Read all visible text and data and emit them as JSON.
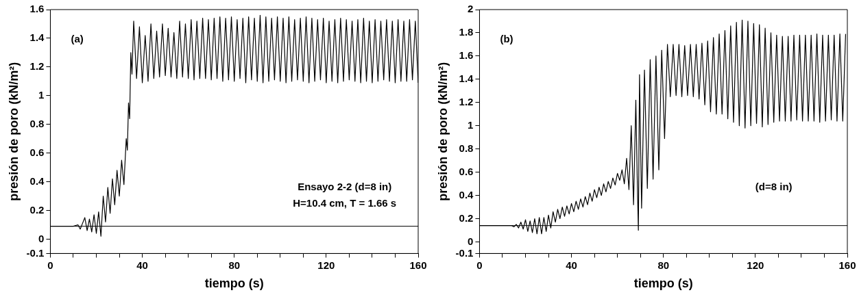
{
  "chart_data": [
    {
      "type": "line",
      "xlabel": "tiempo (s)",
      "ylabel": "presión de poro (kN/m²)",
      "xlim": [
        0,
        160
      ],
      "ylim": [
        -0.1,
        1.6
      ],
      "xticks": [
        0,
        {
          "value": 10,
          "label": null
        },
        {
          "value": 20,
          "label": null
        },
        {
          "value": 30,
          "label": null
        },
        40,
        {
          "value": 50,
          "label": null
        },
        {
          "value": 60,
          "label": null
        },
        {
          "value": 70,
          "label": null
        },
        80,
        {
          "value": 90,
          "label": null
        },
        {
          "value": 100,
          "label": null
        },
        {
          "value": 110,
          "label": null
        },
        120,
        {
          "value": 130,
          "label": null
        },
        {
          "value": 140,
          "label": null
        },
        {
          "value": 150,
          "label": null
        },
        160
      ],
      "yticks": [
        -0.1,
        0,
        0.2,
        0.4,
        0.6,
        0.8,
        1,
        1.2,
        1.4,
        1.6
      ],
      "annotations": [
        "(a)",
        "Ensayo 2-2 (d=8 in)",
        "H=10.4 cm, T = 1.66 s"
      ],
      "ref_lines": [
        {
          "axis": "y",
          "value": 0.09,
          "color": "#000000"
        }
      ],
      "series": [
        {
          "color": "#000000",
          "x": [
            0,
            5,
            10,
            12,
            13,
            14,
            15,
            16,
            17,
            18,
            19,
            20,
            21,
            22,
            23,
            24,
            25,
            26,
            27,
            28,
            29,
            30,
            31,
            32,
            33,
            33.5,
            34,
            34.5,
            35,
            35.5,
            36.25,
            37.5,
            38.75,
            40,
            41.25,
            42.5,
            43.75,
            45,
            46.25,
            47.5,
            48.75,
            50,
            51.25,
            52.5,
            53.75,
            55,
            56.25,
            57.5,
            58.75,
            60,
            61.25,
            62.5,
            63.75,
            65,
            66.25,
            67.5,
            68.75,
            70,
            71.25,
            72.5,
            73.75,
            75,
            76.25,
            77.5,
            78.75,
            80,
            81.25,
            82.5,
            83.75,
            85,
            86.25,
            87.5,
            88.75,
            90,
            91.25,
            92.5,
            93.75,
            95,
            96.25,
            97.5,
            98.75,
            100,
            101.25,
            102.5,
            103.75,
            105,
            106.25,
            107.5,
            108.75,
            110,
            111.25,
            112.5,
            113.75,
            115,
            116.25,
            117.5,
            118.75,
            120,
            121.25,
            122.5,
            123.75,
            125,
            126.25,
            127.5,
            128.75,
            130,
            131.25,
            132.5,
            133.75,
            135,
            136.25,
            137.5,
            138.75,
            140,
            141.25,
            142.5,
            143.75,
            145,
            146.25,
            147.5,
            148.75,
            150,
            151.25,
            152.5,
            153.75,
            155,
            156.25,
            157.5,
            158.75,
            160
          ],
          "values": [
            0.09,
            0.09,
            0.09,
            0.1,
            0.07,
            0.11,
            0.15,
            0.06,
            0.14,
            0.05,
            0.17,
            0.04,
            0.19,
            0.02,
            0.3,
            0.12,
            0.36,
            0.18,
            0.42,
            0.24,
            0.48,
            0.3,
            0.55,
            0.38,
            0.7,
            0.62,
            0.95,
            0.84,
            1.3,
            1.15,
            1.52,
            1.12,
            1.48,
            1.09,
            1.42,
            1.1,
            1.5,
            1.12,
            1.45,
            1.13,
            1.5,
            1.14,
            1.47,
            1.13,
            1.44,
            1.12,
            1.52,
            1.13,
            1.5,
            1.12,
            1.53,
            1.11,
            1.52,
            1.12,
            1.54,
            1.12,
            1.53,
            1.11,
            1.54,
            1.12,
            1.55,
            1.1,
            1.54,
            1.11,
            1.55,
            1.1,
            1.53,
            1.12,
            1.54,
            1.09,
            1.55,
            1.11,
            1.54,
            1.1,
            1.56,
            1.09,
            1.55,
            1.1,
            1.54,
            1.11,
            1.55,
            1.1,
            1.54,
            1.09,
            1.55,
            1.1,
            1.53,
            1.11,
            1.54,
            1.1,
            1.55,
            1.09,
            1.54,
            1.1,
            1.53,
            1.11,
            1.54,
            1.09,
            1.52,
            1.1,
            1.53,
            1.09,
            1.54,
            1.1,
            1.53,
            1.11,
            1.52,
            1.1,
            1.53,
            1.09,
            1.54,
            1.1,
            1.52,
            1.09,
            1.53,
            1.1,
            1.52,
            1.11,
            1.53,
            1.1,
            1.52,
            1.09,
            1.53,
            1.1,
            1.52,
            1.1,
            1.53,
            1.11,
            1.52,
            1.09
          ]
        }
      ]
    },
    {
      "type": "line",
      "xlabel": "tiempo (s)",
      "ylabel": "presión de poro (kN/m²)",
      "xlim": [
        0,
        160
      ],
      "ylim": [
        -0.1,
        2
      ],
      "xticks": [
        0,
        {
          "value": 10,
          "label": null
        },
        {
          "value": 20,
          "label": null
        },
        {
          "value": 30,
          "label": null
        },
        40,
        {
          "value": 50,
          "label": null
        },
        {
          "value": 60,
          "label": null
        },
        {
          "value": 70,
          "label": null
        },
        80,
        {
          "value": 90,
          "label": null
        },
        {
          "value": 100,
          "label": null
        },
        {
          "value": 110,
          "label": null
        },
        120,
        {
          "value": 130,
          "label": null
        },
        {
          "value": 140,
          "label": null
        },
        {
          "value": 150,
          "label": null
        },
        160
      ],
      "yticks": [
        -0.1,
        0,
        0.2,
        0.4,
        0.6,
        0.8,
        1,
        1.2,
        1.4,
        1.6,
        1.8,
        2
      ],
      "annotations": [
        "(b)",
        "(d=8 in)"
      ],
      "ref_lines": [
        {
          "axis": "y",
          "value": 0.14,
          "color": "#000000"
        }
      ],
      "series": [
        {
          "color": "#000000",
          "x": [
            0,
            5,
            10,
            14,
            15,
            16,
            17,
            18,
            19,
            20,
            21,
            22,
            23,
            24,
            25,
            26,
            27,
            28,
            29,
            30,
            31,
            32,
            33,
            34,
            35,
            36,
            37,
            38,
            39,
            40,
            41,
            42,
            43,
            44,
            45,
            46,
            47,
            48,
            49,
            50,
            51,
            52,
            53,
            54,
            55,
            56,
            57,
            58,
            59,
            60,
            61,
            62,
            63,
            64,
            65,
            66,
            67,
            68,
            68.6,
            69.1,
            69.6,
            70.5,
            71.75,
            73,
            74.25,
            75.5,
            76.75,
            78,
            79.25,
            80.5,
            81.75,
            83,
            84.25,
            85.5,
            86.75,
            88,
            89.25,
            90.5,
            91.75,
            93,
            94.25,
            95.5,
            96.75,
            98,
            99.25,
            100.5,
            101.75,
            103,
            104.25,
            105.5,
            106.75,
            108,
            109.25,
            110.5,
            111.75,
            113,
            114.25,
            115.5,
            116.75,
            118,
            119.25,
            120.5,
            121.75,
            123,
            124.25,
            125.5,
            126.75,
            128,
            129.25,
            130.5,
            131.75,
            133,
            134.25,
            135.5,
            136.75,
            138,
            139.25,
            140.5,
            141.75,
            143,
            144.25,
            145.5,
            146.75,
            148,
            149.25,
            150.5,
            151.75,
            153,
            154.25,
            155.5,
            156.75,
            158,
            159.25
          ],
          "values": [
            0.14,
            0.14,
            0.14,
            0.14,
            0.13,
            0.15,
            0.12,
            0.17,
            0.11,
            0.19,
            0.09,
            0.18,
            0.08,
            0.2,
            0.07,
            0.21,
            0.07,
            0.21,
            0.09,
            0.23,
            0.12,
            0.26,
            0.17,
            0.28,
            0.2,
            0.3,
            0.22,
            0.31,
            0.24,
            0.33,
            0.26,
            0.35,
            0.28,
            0.37,
            0.3,
            0.39,
            0.32,
            0.42,
            0.35,
            0.45,
            0.38,
            0.47,
            0.4,
            0.5,
            0.43,
            0.52,
            0.46,
            0.55,
            0.49,
            0.59,
            0.53,
            0.62,
            0.5,
            0.72,
            0.45,
            1.0,
            0.32,
            1.22,
            0.55,
            0.1,
            1.44,
            0.29,
            1.48,
            0.46,
            1.57,
            0.54,
            1.6,
            0.62,
            1.65,
            0.89,
            1.7,
            1.25,
            1.7,
            1.26,
            1.7,
            1.25,
            1.69,
            1.26,
            1.7,
            1.25,
            1.7,
            1.23,
            1.71,
            1.18,
            1.73,
            1.12,
            1.76,
            1.1,
            1.79,
            1.1,
            1.82,
            1.06,
            1.86,
            1.03,
            1.89,
            1.0,
            1.91,
            0.98,
            1.9,
            1.0,
            1.88,
            1.02,
            1.87,
            0.99,
            1.84,
            1.01,
            1.8,
            1.03,
            1.78,
            1.04,
            1.77,
            1.04,
            1.77,
            1.04,
            1.78,
            1.05,
            1.78,
            1.04,
            1.78,
            1.04,
            1.78,
            1.04,
            1.79,
            1.03,
            1.78,
            1.04,
            1.78,
            1.05,
            1.78,
            1.04,
            1.79,
            1.04,
            1.79
          ]
        }
      ]
    }
  ]
}
